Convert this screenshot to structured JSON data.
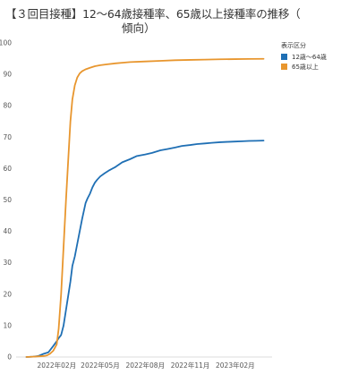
{
  "chart_data": {
    "type": "line",
    "title": "【３回目接種】12〜64歳接種率、65歳以上接種率の推移（",
    "subtitle": "傾向）",
    "xlabel": "",
    "ylabel": "",
    "ylim": [
      0,
      100
    ],
    "yticks": [
      "0",
      "10",
      "20",
      "30",
      "40",
      "50",
      "60",
      "70",
      "80",
      "90",
      "100"
    ],
    "xticks": [
      "2022年02月",
      "2022年05月",
      "2022年08月",
      "2022年11月",
      "2023年02月"
    ],
    "grid": false,
    "legend": {
      "title": "表示区分",
      "placement": "right-top"
    },
    "series": [
      {
        "name": "12歳〜64歳",
        "color": "#1f6fb4",
        "x": [
          "2021-12-01",
          "2021-12-15",
          "2021-12-25",
          "2022-01-05",
          "2022-01-15",
          "2022-01-25",
          "2022-02-01",
          "2022-02-05",
          "2022-02-10",
          "2022-02-15",
          "2022-02-20",
          "2022-02-25",
          "2022-03-01",
          "2022-03-05",
          "2022-03-10",
          "2022-03-15",
          "2022-03-20",
          "2022-03-25",
          "2022-04-01",
          "2022-04-05",
          "2022-04-10",
          "2022-04-15",
          "2022-04-20",
          "2022-04-25",
          "2022-05-01",
          "2022-05-10",
          "2022-05-20",
          "2022-06-01",
          "2022-06-15",
          "2022-07-01",
          "2022-07-15",
          "2022-08-01",
          "2022-08-15",
          "2022-09-01",
          "2022-09-15",
          "2022-10-01",
          "2022-10-15",
          "2022-11-01",
          "2022-11-15",
          "2022-12-01",
          "2022-12-15",
          "2023-01-01",
          "2023-01-15",
          "2023-02-01",
          "2023-02-15",
          "2023-03-01",
          "2023-03-15",
          "2023-03-31"
        ],
        "values": [
          0,
          0.1,
          0.3,
          1,
          1.5,
          3.5,
          5,
          6,
          7,
          10,
          15,
          20,
          24,
          29,
          32,
          36,
          40,
          44,
          49,
          50.5,
          52,
          54,
          55.5,
          56.5,
          57.5,
          58.5,
          59.5,
          60.5,
          62,
          63,
          64,
          64.5,
          65,
          65.8,
          66.2,
          66.7,
          67.2,
          67.5,
          67.8,
          68,
          68.2,
          68.4,
          68.5,
          68.6,
          68.7,
          68.8,
          68.85,
          68.9
        ]
      },
      {
        "name": "65歳以上",
        "color": "#e8962e",
        "x": [
          "2021-12-01",
          "2021-12-15",
          "2021-12-25",
          "2022-01-05",
          "2022-01-12",
          "2022-01-18",
          "2022-01-25",
          "2022-02-01",
          "2022-02-05",
          "2022-02-10",
          "2022-02-15",
          "2022-02-20",
          "2022-02-25",
          "2022-03-01",
          "2022-03-05",
          "2022-03-10",
          "2022-03-15",
          "2022-03-20",
          "2022-03-25",
          "2022-04-01",
          "2022-04-10",
          "2022-04-20",
          "2022-05-01",
          "2022-05-15",
          "2022-06-01",
          "2022-06-15",
          "2022-07-01",
          "2022-08-01",
          "2022-09-01",
          "2022-10-01",
          "2022-11-01",
          "2022-12-01",
          "2023-01-01",
          "2023-02-01",
          "2023-03-01",
          "2023-03-31"
        ],
        "values": [
          0,
          0.1,
          0.2,
          0.3,
          0.5,
          1,
          2,
          4,
          9,
          20,
          35,
          50,
          64,
          75,
          82,
          86.5,
          89,
          90.3,
          91,
          91.6,
          92.1,
          92.6,
          92.9,
          93.2,
          93.5,
          93.7,
          93.9,
          94.1,
          94.3,
          94.5,
          94.6,
          94.7,
          94.8,
          94.85,
          94.9,
          94.95
        ]
      }
    ]
  }
}
